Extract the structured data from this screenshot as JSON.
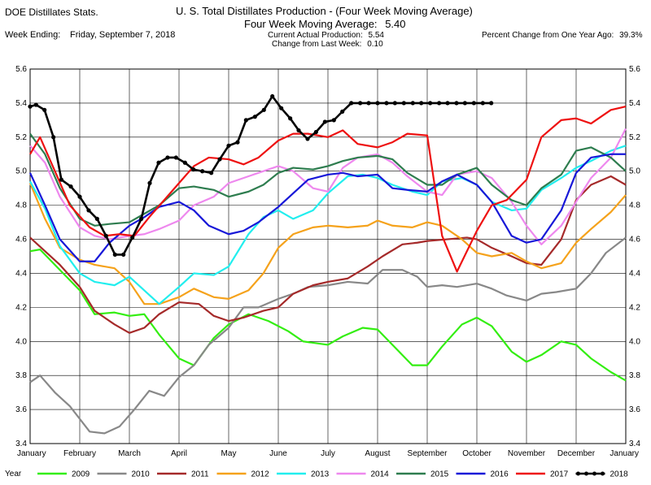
{
  "header": {
    "left_title": "DOE Distillates Stats.",
    "main_title": "U. S. Total Distillates Production - (Four Week Moving Average)",
    "moving_avg_label": "Four Week Moving Average:",
    "moving_avg_value": "5.40",
    "week_ending_label": "Week Ending:",
    "week_ending_value": "Friday, September 7, 2018",
    "current_label": "Current Actual Production:",
    "current_value": "5.54",
    "change_label": "Change from Last Week:",
    "change_value": "0.10",
    "pct_label": "Percent Change from One Year Ago:",
    "pct_value": "39.3%"
  },
  "chart_data": {
    "type": "line",
    "title": "U. S. Total Distillates Production - (Four Week Moving Average)",
    "x_ticks": [
      "January",
      "February",
      "March",
      "April",
      "May",
      "June",
      "July",
      "August",
      "September",
      "October",
      "November",
      "December",
      "January"
    ],
    "ylim": [
      3.4,
      5.6
    ],
    "y_ticks": [
      "3.4",
      "3.6",
      "3.8",
      "4.0",
      "4.2",
      "4.4",
      "4.6",
      "4.8",
      "5.0",
      "5.2",
      "5.4",
      "5.6"
    ],
    "grid": true,
    "legend_title": "Year",
    "legend_position": "bottom",
    "series": [
      {
        "name": "2009",
        "color": "#33ee11",
        "x": [
          0,
          0.2,
          0.5,
          1,
          1.3,
          1.7,
          2,
          2.3,
          2.6,
          3,
          3.3,
          3.7,
          4,
          4.4,
          4.8,
          5.2,
          5.5,
          6,
          6.3,
          6.7,
          7,
          7.3,
          7.7,
          8,
          8.3,
          8.7,
          9,
          9.3,
          9.7,
          10,
          10.3,
          10.7,
          11,
          11.3,
          11.7,
          12
        ],
        "values": [
          4.53,
          4.54,
          4.45,
          4.3,
          4.16,
          4.17,
          4.15,
          4.16,
          4.04,
          3.9,
          3.86,
          4.02,
          4.1,
          4.16,
          4.12,
          4.06,
          4.0,
          3.98,
          4.03,
          4.08,
          4.07,
          3.98,
          3.86,
          3.86,
          3.97,
          4.1,
          4.14,
          4.09,
          3.94,
          3.88,
          3.92,
          4.0,
          3.98,
          3.9,
          3.82,
          3.77
        ]
      },
      {
        "name": "2010",
        "color": "#888888",
        "x": [
          0,
          0.2,
          0.5,
          0.8,
          1.2,
          1.5,
          1.8,
          2.1,
          2.4,
          2.7,
          3,
          3.3,
          3.6,
          4,
          4.3,
          4.6,
          5,
          5.3,
          5.6,
          6,
          6.4,
          6.8,
          7.1,
          7.5,
          7.8,
          8,
          8.3,
          8.6,
          9,
          9.3,
          9.6,
          10,
          10.3,
          10.6,
          11,
          11.3,
          11.6,
          12
        ],
        "values": [
          3.76,
          3.8,
          3.7,
          3.62,
          3.47,
          3.46,
          3.5,
          3.6,
          3.71,
          3.68,
          3.79,
          3.86,
          3.98,
          4.08,
          4.2,
          4.2,
          4.25,
          4.28,
          4.32,
          4.33,
          4.35,
          4.34,
          4.42,
          4.42,
          4.38,
          4.32,
          4.33,
          4.32,
          4.34,
          4.31,
          4.27,
          4.24,
          4.28,
          4.29,
          4.31,
          4.4,
          4.52,
          4.61
        ]
      },
      {
        "name": "2011",
        "color": "#a52a2a",
        "x": [
          0,
          0.3,
          0.6,
          1,
          1.3,
          1.7,
          2,
          2.3,
          2.6,
          3,
          3.4,
          3.7,
          4,
          4.3,
          4.7,
          5,
          5.3,
          5.7,
          6,
          6.4,
          6.8,
          7.1,
          7.5,
          7.8,
          8,
          8.4,
          8.8,
          9,
          9.3,
          9.7,
          10,
          10.3,
          10.7,
          11,
          11.3,
          11.7,
          12
        ],
        "values": [
          4.61,
          4.53,
          4.45,
          4.32,
          4.18,
          4.1,
          4.05,
          4.08,
          4.16,
          4.23,
          4.22,
          4.15,
          4.12,
          4.14,
          4.18,
          4.2,
          4.28,
          4.33,
          4.35,
          4.37,
          4.44,
          4.5,
          4.57,
          4.58,
          4.59,
          4.6,
          4.61,
          4.6,
          4.55,
          4.5,
          4.46,
          4.45,
          4.6,
          4.83,
          4.92,
          4.97,
          4.92
        ]
      },
      {
        "name": "2012",
        "color": "#f5a21b",
        "x": [
          0,
          0.3,
          0.6,
          1,
          1.3,
          1.7,
          2,
          2.3,
          2.6,
          3,
          3.3,
          3.7,
          4,
          4.4,
          4.7,
          5,
          5.3,
          5.7,
          6,
          6.4,
          6.8,
          7,
          7.3,
          7.7,
          8,
          8.3,
          8.7,
          9,
          9.3,
          9.7,
          10,
          10.3,
          10.7,
          11,
          11.3,
          11.7,
          12
        ],
        "values": [
          4.93,
          4.72,
          4.55,
          4.48,
          4.45,
          4.43,
          4.35,
          4.22,
          4.22,
          4.26,
          4.31,
          4.26,
          4.25,
          4.3,
          4.4,
          4.55,
          4.63,
          4.67,
          4.68,
          4.67,
          4.68,
          4.71,
          4.68,
          4.67,
          4.7,
          4.68,
          4.6,
          4.52,
          4.5,
          4.52,
          4.47,
          4.43,
          4.46,
          4.58,
          4.66,
          4.76,
          4.86
        ]
      },
      {
        "name": "2013",
        "color": "#22eeee",
        "x": [
          0,
          0.3,
          0.6,
          1,
          1.3,
          1.7,
          2,
          2.3,
          2.6,
          3,
          3.3,
          3.7,
          4,
          4.4,
          4.7,
          5,
          5.3,
          5.7,
          6,
          6.4,
          6.7,
          7,
          7.3,
          7.7,
          8,
          8.3,
          8.7,
          9,
          9.3,
          9.7,
          10,
          10.3,
          10.7,
          11,
          11.3,
          11.7,
          12
        ],
        "values": [
          4.94,
          4.78,
          4.56,
          4.4,
          4.35,
          4.33,
          4.38,
          4.3,
          4.22,
          4.32,
          4.4,
          4.39,
          4.44,
          4.63,
          4.73,
          4.77,
          4.72,
          4.77,
          4.87,
          4.97,
          4.98,
          4.96,
          4.92,
          4.88,
          4.86,
          4.94,
          4.96,
          4.92,
          4.82,
          4.77,
          4.78,
          4.89,
          4.96,
          5.02,
          5.06,
          5.12,
          5.15
        ]
      },
      {
        "name": "2014",
        "color": "#ee88ee",
        "x": [
          0,
          0.3,
          0.6,
          1,
          1.3,
          1.6,
          2,
          2.3,
          2.6,
          3,
          3.3,
          3.7,
          4,
          4.4,
          4.7,
          5,
          5.3,
          5.7,
          6,
          6.3,
          6.6,
          7,
          7.3,
          7.6,
          8,
          8.3,
          8.6,
          9,
          9.3,
          9.7,
          10,
          10.3,
          10.7,
          11,
          11.3,
          11.7,
          12
        ],
        "values": [
          5.15,
          5.05,
          4.85,
          4.67,
          4.62,
          4.6,
          4.62,
          4.63,
          4.66,
          4.71,
          4.8,
          4.85,
          4.93,
          4.97,
          5.0,
          5.03,
          5.0,
          4.9,
          4.88,
          5.02,
          5.08,
          5.1,
          5.05,
          4.97,
          4.88,
          4.86,
          4.98,
          5.0,
          4.96,
          4.82,
          4.68,
          4.57,
          4.68,
          4.82,
          4.96,
          5.08,
          5.25
        ]
      },
      {
        "name": "2015",
        "color": "#2e7d4f",
        "x": [
          0,
          0.3,
          0.6,
          1,
          1.3,
          1.6,
          2,
          2.3,
          2.6,
          3,
          3.3,
          3.7,
          4,
          4.4,
          4.7,
          5,
          5.3,
          5.7,
          6,
          6.3,
          6.6,
          7,
          7.3,
          7.6,
          8,
          8.3,
          8.6,
          9,
          9.3,
          9.7,
          10,
          10.3,
          10.7,
          11,
          11.3,
          11.7,
          12
        ],
        "values": [
          5.22,
          5.1,
          4.9,
          4.72,
          4.68,
          4.69,
          4.7,
          4.75,
          4.8,
          4.9,
          4.91,
          4.89,
          4.85,
          4.88,
          4.92,
          4.99,
          5.02,
          5.01,
          5.03,
          5.06,
          5.08,
          5.09,
          5.07,
          4.99,
          4.92,
          4.92,
          4.98,
          5.02,
          4.92,
          4.83,
          4.8,
          4.9,
          4.98,
          5.12,
          5.14,
          5.08,
          5.0
        ]
      },
      {
        "name": "2016",
        "color": "#1818d8",
        "x": [
          0,
          0.3,
          0.6,
          1,
          1.3,
          1.6,
          2,
          2.3,
          2.6,
          3,
          3.3,
          3.6,
          4,
          4.3,
          4.6,
          5,
          5.3,
          5.6,
          6,
          6.3,
          6.6,
          7,
          7.3,
          7.6,
          8,
          8.3,
          8.6,
          9,
          9.3,
          9.7,
          10,
          10.3,
          10.7,
          11,
          11.3,
          11.7,
          12
        ],
        "values": [
          4.99,
          4.8,
          4.6,
          4.47,
          4.47,
          4.58,
          4.68,
          4.73,
          4.79,
          4.82,
          4.77,
          4.68,
          4.63,
          4.65,
          4.7,
          4.79,
          4.87,
          4.95,
          4.98,
          4.99,
          4.97,
          4.98,
          4.9,
          4.89,
          4.88,
          4.94,
          4.98,
          4.92,
          4.82,
          4.62,
          4.58,
          4.6,
          4.77,
          4.99,
          5.08,
          5.1,
          5.1
        ]
      },
      {
        "name": "2017",
        "color": "#ee1111",
        "x": [
          0,
          0.2,
          0.5,
          0.8,
          1.2,
          1.5,
          1.8,
          2.1,
          2.4,
          2.7,
          3,
          3.3,
          3.6,
          4,
          4.3,
          4.6,
          5,
          5.3,
          5.6,
          6,
          6.3,
          6.6,
          7,
          7.3,
          7.6,
          8,
          8.3,
          8.6,
          9,
          9.3,
          9.6,
          10,
          10.3,
          10.7,
          11,
          11.3,
          11.7,
          12
        ],
        "values": [
          5.1,
          5.2,
          5.0,
          4.8,
          4.67,
          4.62,
          4.63,
          4.62,
          4.73,
          4.83,
          4.93,
          5.03,
          5.08,
          5.07,
          5.04,
          5.08,
          5.18,
          5.22,
          5.22,
          5.2,
          5.24,
          5.16,
          5.14,
          5.17,
          5.22,
          5.21,
          4.62,
          4.41,
          4.65,
          4.8,
          4.83,
          4.95,
          5.2,
          5.3,
          5.31,
          5.28,
          5.36,
          5.38
        ]
      },
      {
        "name": "2018",
        "color": "#000000",
        "marker": "dot",
        "x": [
          0,
          0.12,
          0.29,
          0.47,
          0.63,
          0.82,
          1.0,
          1.18,
          1.35,
          1.53,
          1.71,
          1.88,
          2.06,
          2.24,
          2.41,
          2.59,
          2.77,
          2.94,
          3.12,
          3.29,
          3.47,
          3.65,
          3.82,
          4.0,
          4.18,
          4.35,
          4.53,
          4.71,
          4.88,
          5.06,
          5.24,
          5.41,
          5.59,
          5.76,
          5.94,
          6.12,
          6.29,
          6.47,
          6.65,
          6.82,
          7.0,
          7.18,
          7.35,
          7.53,
          7.71,
          7.88,
          8.06,
          8.24,
          8.41,
          8.59,
          8.76,
          8.94,
          9.12,
          9.29
        ],
        "values": [
          5.38,
          5.39,
          5.36,
          5.2,
          4.95,
          4.91,
          4.85,
          4.77,
          4.72,
          4.62,
          4.51,
          4.51,
          4.61,
          4.72,
          4.93,
          5.05,
          5.08,
          5.08,
          5.05,
          5.01,
          5.0,
          4.99,
          5.07,
          5.15,
          5.17,
          5.3,
          5.32,
          5.36,
          5.44,
          5.37,
          5.31,
          5.24,
          5.19,
          5.23,
          5.29,
          5.3,
          5.35,
          5.4,
          5.4,
          5.4,
          5.4,
          5.4,
          5.4,
          5.4,
          5.4,
          5.4,
          5.4,
          5.4,
          5.4,
          5.4,
          5.4,
          5.4,
          5.4,
          5.4
        ]
      }
    ]
  }
}
